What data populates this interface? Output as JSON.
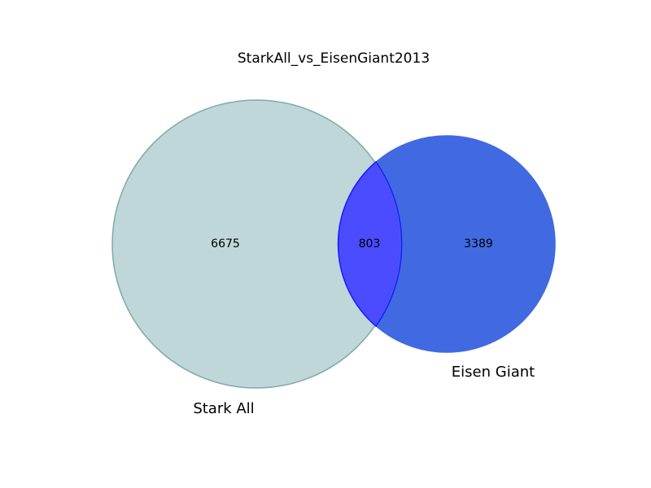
{
  "title": "StarkAll_vs_EisenGiant2013",
  "sets": [
    {
      "name": "Stark All",
      "only_count": "6675",
      "fill": "#a9cacc",
      "edge": "#7fa9ab"
    },
    {
      "name": "Eisen Giant",
      "only_count": "3389",
      "fill": "#4169e1",
      "edge": "#3a5fd0"
    }
  ],
  "intersection": {
    "count": "803",
    "fill": "#4b4bff",
    "edge": "#1a1aff"
  }
}
